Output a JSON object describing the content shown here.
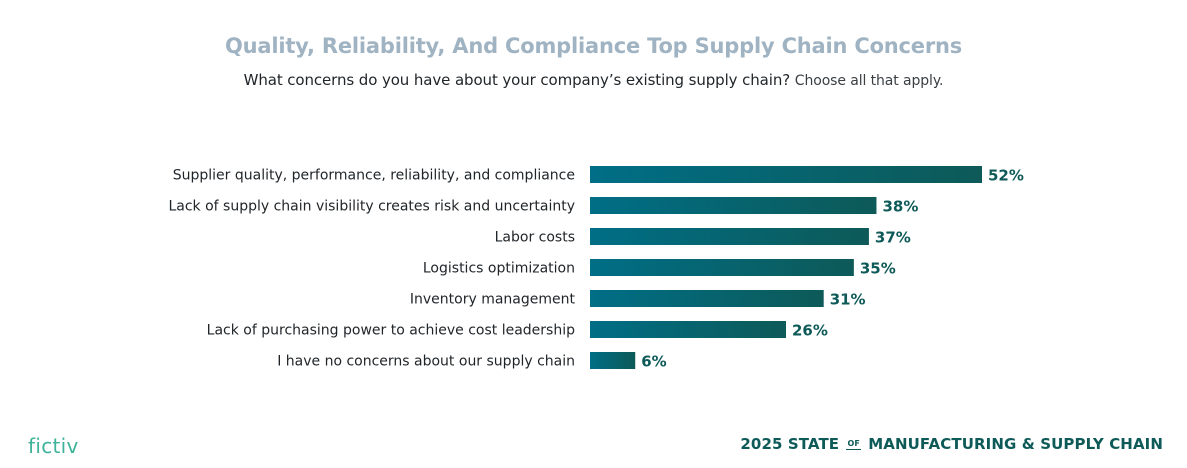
{
  "colors": {
    "title": "#9fb3c2",
    "bar_start": "#006e86",
    "bar_end": "#0d5a58",
    "value": "#0d5a58",
    "logo": "#3fb39a",
    "footer": "#0d5a58"
  },
  "header": {
    "title": "Quality, Reliability, And Compliance Top Supply Chain Concerns",
    "question": "What concerns do you have about your company’s existing supply chain?",
    "note": "Choose all that apply."
  },
  "chart_data": {
    "type": "bar",
    "orientation": "horizontal",
    "title": "Quality, Reliability, And Compliance Top Supply Chain Concerns",
    "xlabel": "",
    "ylabel": "",
    "xlim": [
      0,
      52
    ],
    "unit": "%",
    "categories": [
      "Supplier quality, performance, reliability, and compliance",
      "Lack of supply chain visibility creates risk and uncertainty",
      "Labor costs",
      "Logistics optimization",
      "Inventory management",
      "Lack of purchasing power to achieve cost leadership",
      "I have no concerns about our supply chain"
    ],
    "values": [
      52,
      38,
      37,
      35,
      31,
      26,
      6
    ],
    "value_labels": [
      "52%",
      "38%",
      "37%",
      "35%",
      "31%",
      "26%",
      "6%"
    ]
  },
  "footer": {
    "logo": "fictiv",
    "report_prefix": "2025 STATE",
    "report_of": "OF",
    "report_suffix": "MANUFACTURING & SUPPLY CHAIN"
  }
}
